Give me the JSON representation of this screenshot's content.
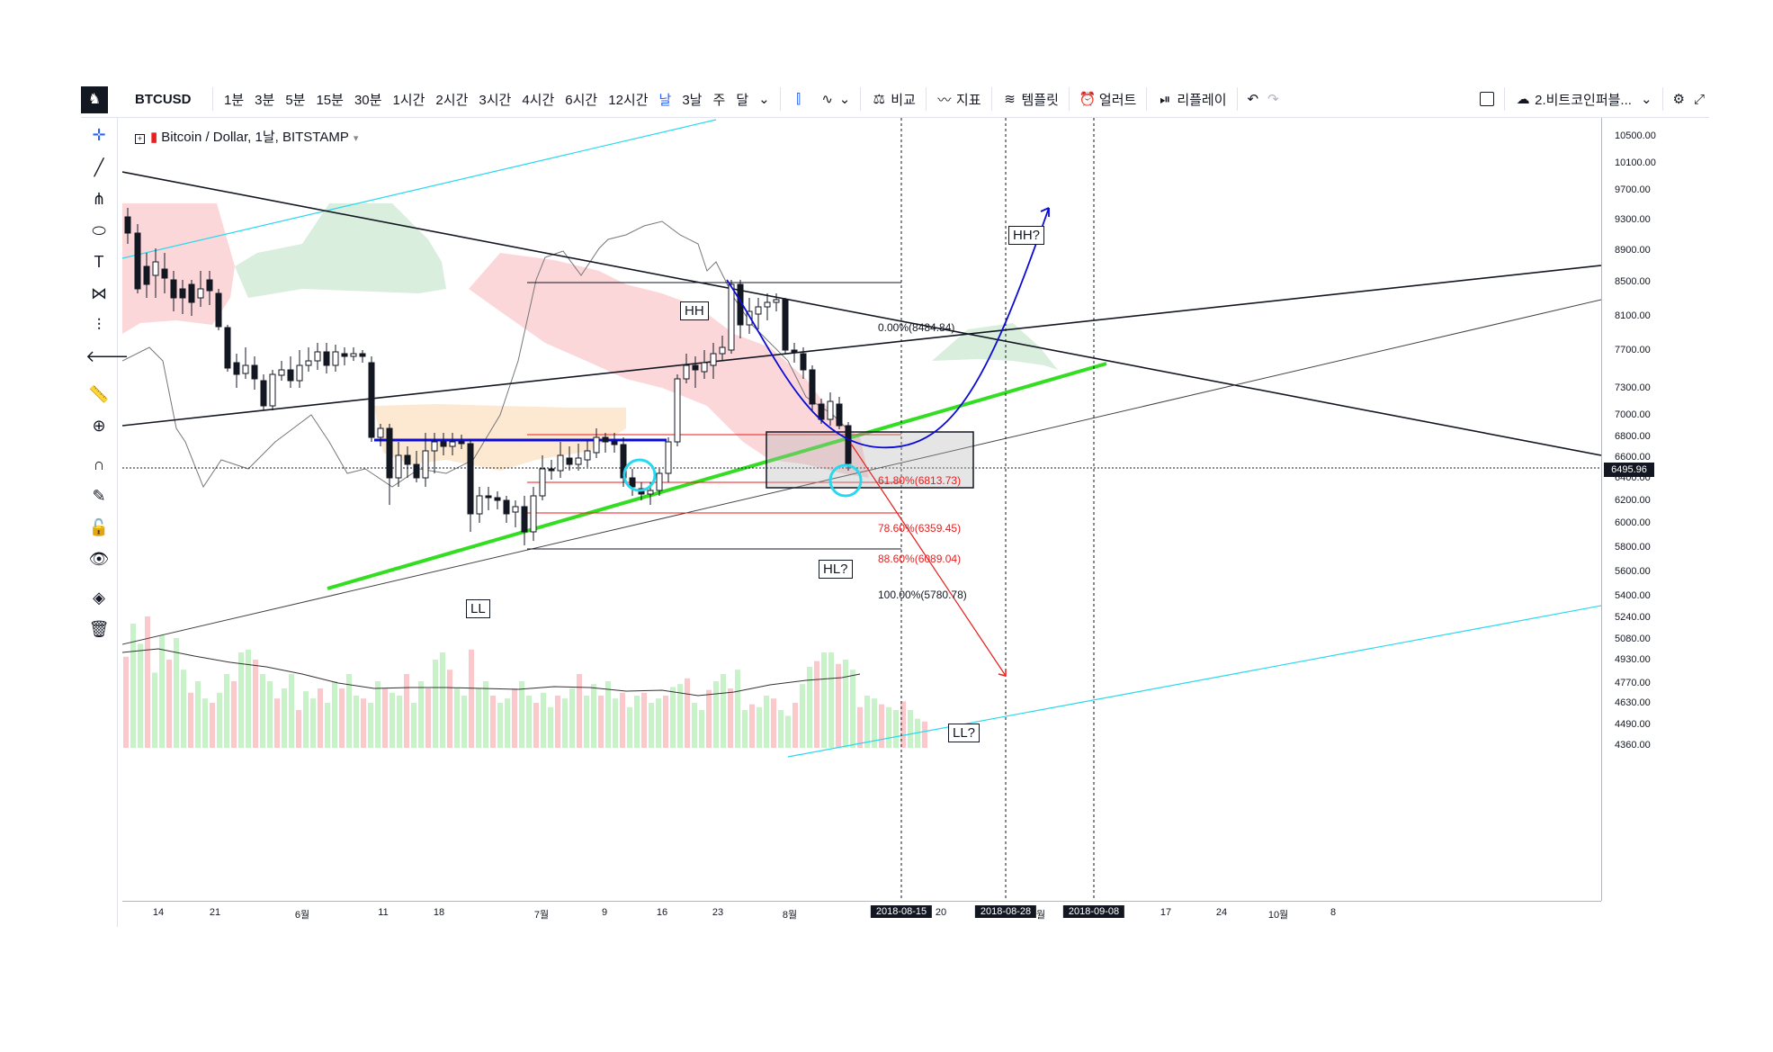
{
  "toolbar": {
    "symbol": "BTCUSD",
    "intervals": [
      "1분",
      "3분",
      "5분",
      "15분",
      "30분",
      "1시간",
      "2시간",
      "3시간",
      "4시간",
      "6시간",
      "12시간",
      "날",
      "3날",
      "주",
      "달"
    ],
    "active_interval": "날",
    "compare": "비교",
    "indicators": "지표",
    "templates": "템플릿",
    "alert": "얼러트",
    "replay": "리플레이",
    "layout_name": "2.비트코인퍼블..."
  },
  "legend": {
    "title": "Bitcoin / Dollar, 1날, BITSTAMP"
  },
  "price_axis": {
    "ticks": [
      "10500.00",
      "10100.00",
      "9700.00",
      "9300.00",
      "8900.00",
      "8500.00",
      "8100.00",
      "7700.00",
      "7300.00",
      "7000.00",
      "6800.00",
      "6600.00",
      "6400.00",
      "6200.00",
      "6000.00",
      "5800.00",
      "5600.00",
      "5400.00",
      "5240.00",
      "5080.00",
      "4930.00",
      "4770.00",
      "4630.00",
      "4490.00",
      "4360.00"
    ],
    "current_price": "6495.96"
  },
  "time_axis": {
    "ticks": [
      "14",
      "21",
      "6월",
      "11",
      "18",
      "7월",
      "9",
      "16",
      "23",
      "8월",
      "20",
      "9월",
      "17",
      "24",
      "10월",
      "8"
    ],
    "date_tags": [
      "2018-08-15",
      "2018-08-28",
      "2018-09-08"
    ]
  },
  "fib": {
    "levels": [
      "0.00%(8484.84)",
      "61.80%(6813.73)",
      "78.60%(6359.45)",
      "88.60%(6089.04)",
      "100.00%(5780.78)"
    ]
  },
  "annotations": {
    "hh": "HH",
    "hh_q": "HH?",
    "hl_q": "HL?",
    "ll": "LL",
    "ll_q": "LL?"
  },
  "colors": {
    "accent": "#2962ff",
    "up": "#ffffff",
    "down": "#131722",
    "fib_red": "#e91e1e",
    "trend_green": "#33dd22",
    "cyan": "#27d8ee",
    "blue": "#0b0bd6"
  }
}
